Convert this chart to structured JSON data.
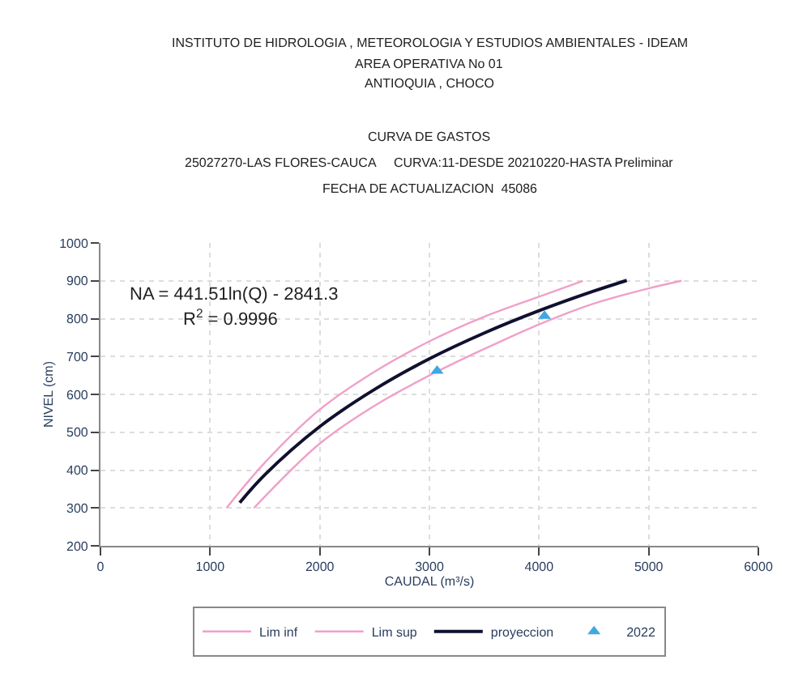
{
  "chart_data": {
    "type": "line",
    "title": "CURVA DE GASTOS",
    "subtitle": "25027270-LAS FLORES-CAUCA     CURVA:11-DESDE 20210220-HASTA Preliminar",
    "annotations": [
      "INSTITUTO DE HIDROLOGIA , METEOROLOGIA Y ESTUDIOS AMBIENTALES - IDEAM",
      "AREA OPERATIVA No 01",
      "ANTIOQUIA , CHOCO",
      "FECHA DE ACTUALIZACION  45086",
      "NA = 441.51ln(Q) - 2841.3",
      "R$^{2}$ = 0.9996"
    ],
    "xlabel": "CAUDAL (m³/s)",
    "ylabel": "NIVEL (cm)",
    "xlim": [
      0,
      6000
    ],
    "xticks": [
      0,
      1000,
      2000,
      3000,
      4000,
      5000,
      6000
    ],
    "ylim": [
      200,
      1000
    ],
    "yticks": [
      200,
      300,
      400,
      500,
      600,
      700,
      800,
      900,
      1000
    ],
    "grid": true,
    "legend": "bottom",
    "series": [
      {
        "name": "Lim inf",
        "color": "#f0a0c8",
        "x": [
          1400,
          2000,
          2500,
          3000,
          3500,
          4000,
          4500,
          5000,
          5300
        ],
        "values": [
          300,
          470,
          570,
          650,
          720,
          785,
          840,
          880,
          900
        ]
      },
      {
        "name": "Lim sup",
        "color": "#f0a0c8",
        "x": [
          1150,
          1500,
          2000,
          2500,
          3000,
          3500,
          4000,
          4400
        ],
        "values": [
          300,
          420,
          560,
          660,
          740,
          805,
          858,
          900
        ]
      },
      {
        "name": "proyeccion",
        "color": "#101030",
        "x": [
          1270,
          1500,
          2000,
          2500,
          3000,
          3500,
          4000,
          4500,
          4800
        ],
        "values": [
          314,
          388,
          515,
          613,
          694,
          762,
          821,
          873,
          901
        ]
      },
      {
        "name": "2022",
        "type": "scatter",
        "marker": "triangle",
        "color": "#40a8e0",
        "x": [
          3070,
          4050
        ],
        "values": [
          662,
          807
        ]
      }
    ]
  }
}
